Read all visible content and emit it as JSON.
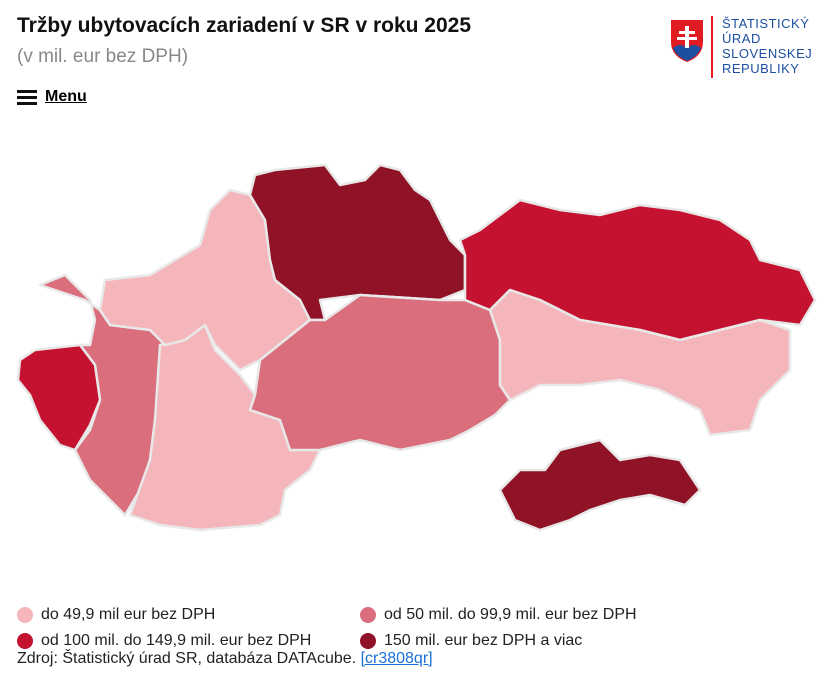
{
  "header": {
    "title": "Tržby ubytovacích zariadení v SR v roku 2025",
    "subtitle": "(v mil. eur bez DPH)",
    "menu": "Menu",
    "logo": [
      "ŠTATISTICKÝ",
      "ÚRAD",
      "SLOVENSKEJ",
      "REPUBLIKY"
    ]
  },
  "legend": {
    "items": [
      {
        "label": "do 49,9 mil eur bez DPH",
        "color": "#f4b6bb"
      },
      {
        "label": "od 50 mil. do 99,9 mil. eur bez DPH",
        "color": "#db6e7d"
      },
      {
        "label": "od 100 mil. do 149,9 mil. eur bez DPH",
        "color": "#c41230"
      },
      {
        "label": "150 mil. eur bez DPH a viac",
        "color": "#8f1226"
      }
    ]
  },
  "source": {
    "text": "Zdroj: Štatistický úrad SR, databáza DATAcube.",
    "link": "[cr3808qr]"
  }
}
